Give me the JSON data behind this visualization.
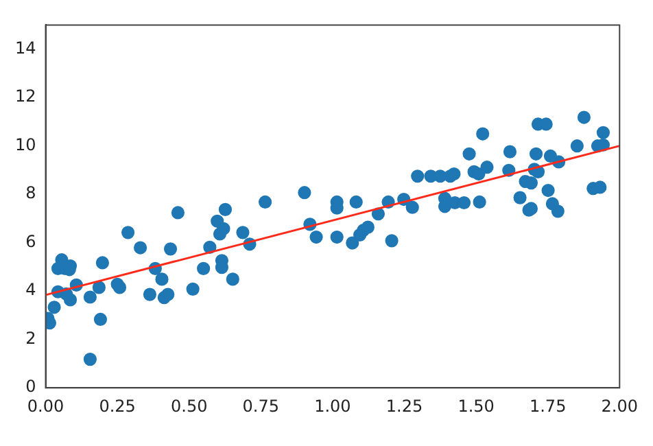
{
  "chart_data": {
    "type": "scatter",
    "xlim": [
      0,
      2
    ],
    "ylim": [
      0,
      15
    ],
    "xticks": [
      {
        "value": 0,
        "label": "0.00"
      },
      {
        "value": 0.25,
        "label": "0.25"
      },
      {
        "value": 0.5,
        "label": "0.50"
      },
      {
        "value": 0.75,
        "label": "0.75"
      },
      {
        "value": 1,
        "label": "1.00"
      },
      {
        "value": 1.25,
        "label": "1.25"
      },
      {
        "value": 1.5,
        "label": "1.50"
      },
      {
        "value": 1.75,
        "label": "1.75"
      },
      {
        "value": 2,
        "label": "2.00"
      }
    ],
    "yticks": [
      0,
      2,
      4,
      6,
      8,
      10,
      12,
      14
    ],
    "grid": false,
    "legend": false,
    "marker": "circle",
    "series": [
      {
        "color": "#1f77b4",
        "x": [
          0.008,
          0.014,
          0.03,
          0.043,
          0.043,
          0.056,
          0.067,
          0.086,
          0.083,
          0.072,
          0.086,
          0.107,
          0.155,
          0.155,
          0.186,
          0.191,
          0.198,
          0.25,
          0.258,
          0.287,
          0.33,
          0.363,
          0.382,
          0.405,
          0.413,
          0.426,
          0.435,
          0.461,
          0.513,
          0.55,
          0.572,
          0.598,
          0.607,
          0.62,
          0.626,
          0.614,
          0.614,
          0.652,
          0.687,
          0.711,
          0.765,
          0.902,
          0.921,
          0.943,
          1.015,
          1.015,
          1.015,
          1.069,
          1.082,
          1.095,
          1.107,
          1.123,
          1.159,
          1.194,
          1.206,
          1.248,
          1.278,
          1.296,
          1.342,
          1.375,
          1.41,
          1.423,
          1.391,
          1.391,
          1.426,
          1.458,
          1.476,
          1.493,
          1.509,
          1.512,
          1.523,
          1.538,
          1.618,
          1.614,
          1.653,
          1.672,
          1.692,
          1.703,
          1.716,
          1.709,
          1.684,
          1.692,
          1.716,
          1.744,
          1.751,
          1.759,
          1.766,
          1.788,
          1.785,
          1.852,
          1.876,
          1.908,
          1.932,
          1.924,
          1.943,
          1.943
        ],
        "values": [
          2.87,
          2.68,
          3.33,
          3.97,
          4.93,
          5.29,
          4.93,
          5.04,
          4.89,
          3.88,
          3.64,
          4.25,
          3.75,
          1.18,
          4.15,
          2.83,
          5.17,
          4.28,
          4.15,
          6.42,
          5.79,
          3.86,
          4.93,
          4.49,
          3.73,
          3.86,
          5.74,
          7.24,
          4.08,
          4.93,
          5.81,
          6.89,
          6.36,
          6.58,
          7.37,
          5.26,
          4.98,
          4.49,
          6.42,
          5.94,
          7.68,
          8.07,
          6.76,
          6.23,
          7.68,
          7.43,
          6.23,
          5.99,
          7.68,
          6.32,
          6.51,
          6.64,
          7.19,
          7.68,
          6.08,
          7.79,
          7.46,
          8.75,
          8.75,
          8.75,
          8.75,
          8.84,
          7.83,
          7.5,
          7.65,
          7.65,
          9.67,
          8.93,
          8.84,
          7.68,
          10.5,
          9.12,
          9.76,
          8.99,
          7.86,
          8.53,
          8.47,
          9.03,
          8.93,
          9.67,
          7.35,
          7.41,
          10.9,
          10.9,
          8.16,
          9.58,
          7.61,
          9.34,
          7.3,
          10.0,
          11.18,
          8.24,
          8.29,
          10.0,
          10.55,
          10.04
        ]
      },
      {
        "type": "line",
        "color": "#ff2a1a",
        "x": [
          0,
          2
        ],
        "values": [
          3.84,
          10.0
        ],
        "marker": "none"
      }
    ]
  }
}
